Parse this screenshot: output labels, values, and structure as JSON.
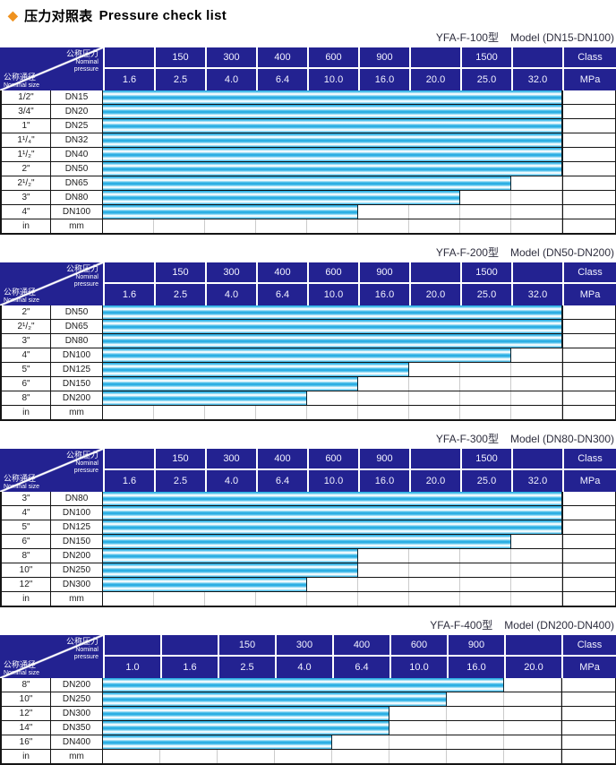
{
  "page_title": {
    "diamond": "◆",
    "zh": "压力对照表",
    "en": "Pressure check list"
  },
  "corner": {
    "pressure_zh": "公称压力",
    "pressure_en_line1": "Nominal",
    "pressure_en_line2": "pressure",
    "size_zh": "公称通径",
    "size_en": "Nominal size"
  },
  "units": {
    "class_label": "Class",
    "mpa_label": "MPa"
  },
  "colors": {
    "header_navy": "#232291",
    "bar_cyan": "#1ba6df",
    "accent_orange": "#ef921f",
    "grid_black": "#141414",
    "faint_grid": "#cbcbcb"
  },
  "tables": [
    {
      "model": "YFA-F-100型",
      "range": "Model (DN15-DN100)",
      "class_row": [
        "",
        "150",
        "300",
        "400",
        "600",
        "900",
        "",
        "1500",
        ""
      ],
      "mpa_row": [
        "1.6",
        "2.5",
        "4.0",
        "6.4",
        "10.0",
        "16.0",
        "20.0",
        "25.0",
        "32.0"
      ],
      "rows": [
        {
          "in": "1/2\"",
          "mm": "DN15",
          "bar_cols": 9
        },
        {
          "in": "3/4\"",
          "mm": "DN20",
          "bar_cols": 9
        },
        {
          "in": "1\"",
          "mm": "DN25",
          "bar_cols": 9
        },
        {
          "in": "1¹/₄\"",
          "mm": "DN32",
          "bar_cols": 9
        },
        {
          "in": "1¹/₂\"",
          "mm": "DN40",
          "bar_cols": 9
        },
        {
          "in": "2\"",
          "mm": "DN50",
          "bar_cols": 9
        },
        {
          "in": "2¹/₂\"",
          "mm": "DN65",
          "bar_cols": 8
        },
        {
          "in": "3\"",
          "mm": "DN80",
          "bar_cols": 7
        },
        {
          "in": "4\"",
          "mm": "DN100",
          "bar_cols": 5
        },
        {
          "in": "in",
          "mm": "mm",
          "bar_cols": 0
        }
      ]
    },
    {
      "model": "YFA-F-200型",
      "range": "Model (DN50-DN200)",
      "class_row": [
        "",
        "150",
        "300",
        "400",
        "600",
        "900",
        "",
        "1500",
        ""
      ],
      "mpa_row": [
        "1.6",
        "2.5",
        "4.0",
        "6.4",
        "10.0",
        "16.0",
        "20.0",
        "25.0",
        "32.0"
      ],
      "rows": [
        {
          "in": "2\"",
          "mm": "DN50",
          "bar_cols": 9
        },
        {
          "in": "2¹/₂\"",
          "mm": "DN65",
          "bar_cols": 9
        },
        {
          "in": "3\"",
          "mm": "DN80",
          "bar_cols": 9
        },
        {
          "in": "4\"",
          "mm": "DN100",
          "bar_cols": 8
        },
        {
          "in": "5\"",
          "mm": "DN125",
          "bar_cols": 6
        },
        {
          "in": "6\"",
          "mm": "DN150",
          "bar_cols": 5
        },
        {
          "in": "8\"",
          "mm": "DN200",
          "bar_cols": 4
        },
        {
          "in": "in",
          "mm": "mm",
          "bar_cols": 0
        }
      ]
    },
    {
      "model": "YFA-F-300型",
      "range": "Model (DN80-DN300)",
      "class_row": [
        "",
        "150",
        "300",
        "400",
        "600",
        "900",
        "",
        "1500",
        ""
      ],
      "mpa_row": [
        "1.6",
        "2.5",
        "4.0",
        "6.4",
        "10.0",
        "16.0",
        "20.0",
        "25.0",
        "32.0"
      ],
      "rows": [
        {
          "in": "3\"",
          "mm": "DN80",
          "bar_cols": 9
        },
        {
          "in": "4\"",
          "mm": "DN100",
          "bar_cols": 9
        },
        {
          "in": "5\"",
          "mm": "DN125",
          "bar_cols": 9
        },
        {
          "in": "6\"",
          "mm": "DN150",
          "bar_cols": 8
        },
        {
          "in": "8\"",
          "mm": "DN200",
          "bar_cols": 5
        },
        {
          "in": "10\"",
          "mm": "DN250",
          "bar_cols": 5
        },
        {
          "in": "12\"",
          "mm": "DN300",
          "bar_cols": 4
        },
        {
          "in": "in",
          "mm": "mm",
          "bar_cols": 0
        }
      ]
    },
    {
      "model": "YFA-F-400型",
      "range": "Model (DN200-DN400)",
      "class_row": [
        "",
        "",
        "150",
        "300",
        "400",
        "600",
        "900",
        ""
      ],
      "mpa_row": [
        "1.0",
        "1.6",
        "2.5",
        "4.0",
        "6.4",
        "10.0",
        "16.0",
        "20.0"
      ],
      "rows": [
        {
          "in": "8\"",
          "mm": "DN200",
          "bar_cols": 7
        },
        {
          "in": "10\"",
          "mm": "DN250",
          "bar_cols": 6
        },
        {
          "in": "12\"",
          "mm": "DN300",
          "bar_cols": 5
        },
        {
          "in": "14\"",
          "mm": "DN350",
          "bar_cols": 5
        },
        {
          "in": "16\"",
          "mm": "DN400",
          "bar_cols": 4
        },
        {
          "in": "in",
          "mm": "mm",
          "bar_cols": 0
        }
      ]
    }
  ]
}
